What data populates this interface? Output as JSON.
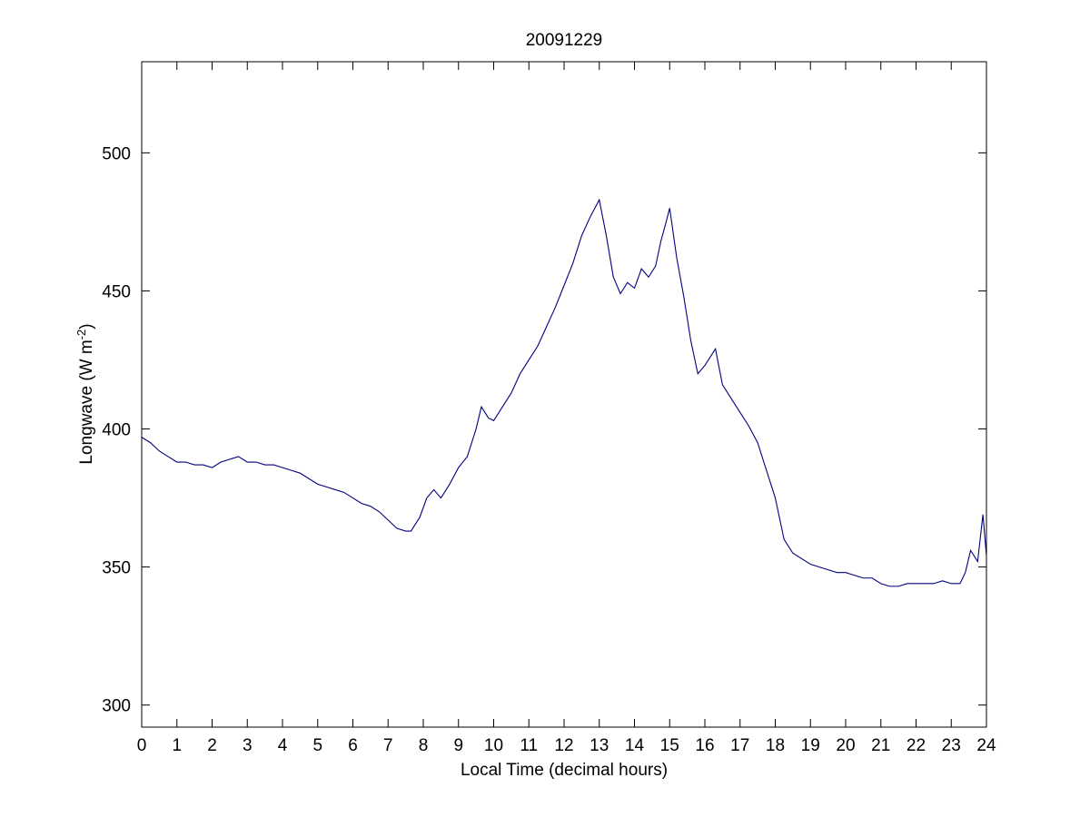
{
  "chart_data": {
    "type": "line",
    "title": "20091229",
    "xlabel": "Local Time (decimal hours)",
    "ylabel": "Longwave (W m",
    "ylabel_sup": "-2",
    "ylabel_close": ")",
    "xlim": [
      0,
      24
    ],
    "ylim": [
      292,
      533
    ],
    "xticks": [
      0,
      1,
      2,
      3,
      4,
      5,
      6,
      7,
      8,
      9,
      10,
      11,
      12,
      13,
      14,
      15,
      16,
      17,
      18,
      19,
      20,
      21,
      22,
      23,
      24
    ],
    "yticks": [
      300,
      350,
      400,
      450,
      500
    ],
    "grid": false,
    "line_color": "#00007f",
    "series": [
      {
        "points": [
          [
            0.0,
            397
          ],
          [
            0.25,
            395
          ],
          [
            0.5,
            392
          ],
          [
            0.75,
            390
          ],
          [
            1.0,
            388
          ],
          [
            1.25,
            388
          ],
          [
            1.5,
            387
          ],
          [
            1.75,
            387
          ],
          [
            2.0,
            386
          ],
          [
            2.25,
            388
          ],
          [
            2.5,
            389
          ],
          [
            2.75,
            390
          ],
          [
            3.0,
            388
          ],
          [
            3.25,
            388
          ],
          [
            3.5,
            387
          ],
          [
            3.75,
            387
          ],
          [
            4.0,
            386
          ],
          [
            4.25,
            385
          ],
          [
            4.5,
            384
          ],
          [
            4.75,
            382
          ],
          [
            5.0,
            380
          ],
          [
            5.25,
            379
          ],
          [
            5.5,
            378
          ],
          [
            5.75,
            377
          ],
          [
            6.0,
            375
          ],
          [
            6.25,
            373
          ],
          [
            6.5,
            372
          ],
          [
            6.75,
            370
          ],
          [
            7.0,
            367
          ],
          [
            7.25,
            364
          ],
          [
            7.5,
            363
          ],
          [
            7.65,
            363
          ],
          [
            7.9,
            368
          ],
          [
            8.1,
            375
          ],
          [
            8.3,
            378
          ],
          [
            8.5,
            375
          ],
          [
            8.75,
            380
          ],
          [
            9.0,
            386
          ],
          [
            9.25,
            390
          ],
          [
            9.5,
            400
          ],
          [
            9.65,
            408
          ],
          [
            9.85,
            404
          ],
          [
            10.0,
            403
          ],
          [
            10.25,
            408
          ],
          [
            10.5,
            413
          ],
          [
            10.75,
            420
          ],
          [
            11.0,
            425
          ],
          [
            11.25,
            430
          ],
          [
            11.5,
            437
          ],
          [
            11.75,
            444
          ],
          [
            12.0,
            452
          ],
          [
            12.25,
            460
          ],
          [
            12.5,
            470
          ],
          [
            12.75,
            477
          ],
          [
            13.0,
            483
          ],
          [
            13.2,
            470
          ],
          [
            13.4,
            455
          ],
          [
            13.6,
            449
          ],
          [
            13.8,
            453
          ],
          [
            14.0,
            451
          ],
          [
            14.2,
            458
          ],
          [
            14.4,
            455
          ],
          [
            14.6,
            459
          ],
          [
            14.75,
            468
          ],
          [
            14.9,
            475
          ],
          [
            15.0,
            480
          ],
          [
            15.2,
            462
          ],
          [
            15.4,
            448
          ],
          [
            15.6,
            432
          ],
          [
            15.8,
            420
          ],
          [
            16.0,
            423
          ],
          [
            16.3,
            429
          ],
          [
            16.5,
            416
          ],
          [
            16.75,
            411
          ],
          [
            17.0,
            406
          ],
          [
            17.25,
            401
          ],
          [
            17.5,
            395
          ],
          [
            17.75,
            385
          ],
          [
            18.0,
            375
          ],
          [
            18.25,
            360
          ],
          [
            18.5,
            355
          ],
          [
            18.75,
            353
          ],
          [
            19.0,
            351
          ],
          [
            19.25,
            350
          ],
          [
            19.5,
            349
          ],
          [
            19.75,
            348
          ],
          [
            20.0,
            348
          ],
          [
            20.25,
            347
          ],
          [
            20.5,
            346
          ],
          [
            20.75,
            346
          ],
          [
            21.0,
            344
          ],
          [
            21.25,
            343
          ],
          [
            21.5,
            343
          ],
          [
            21.75,
            344
          ],
          [
            22.0,
            344
          ],
          [
            22.25,
            344
          ],
          [
            22.5,
            344
          ],
          [
            22.75,
            345
          ],
          [
            23.0,
            344
          ],
          [
            23.25,
            344
          ],
          [
            23.4,
            348
          ],
          [
            23.55,
            356
          ],
          [
            23.75,
            352
          ],
          [
            23.9,
            369
          ],
          [
            24.0,
            354
          ]
        ]
      }
    ]
  }
}
